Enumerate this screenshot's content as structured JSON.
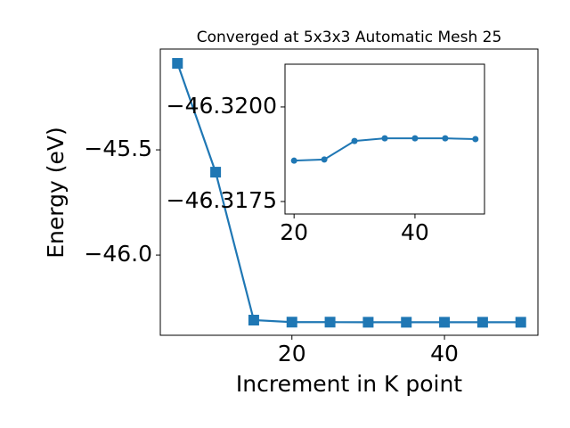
{
  "chart_data": [
    {
      "type": "line",
      "title": "Converged at 5x3x3 Automatic Mesh 25",
      "x_label": "Increment in K point",
      "y_label": "Energy (eV)",
      "x": [
        5,
        10,
        15,
        20,
        25,
        30,
        35,
        40,
        45,
        50
      ],
      "series": [
        {
          "color": "#1f77b4",
          "marker": "square",
          "values": [
            -45.089,
            -45.606,
            -46.309,
            -46.31858,
            -46.31861,
            -46.3191,
            -46.31917,
            -46.31917,
            -46.31917,
            -46.31915
          ]
        }
      ],
      "xlim": [
        2.75,
        52.25
      ],
      "ylim": [
        -46.381,
        -45.021
      ],
      "xticks": [
        20,
        40
      ],
      "yticks": [
        {
          "value": -45.5,
          "label": "−45.5"
        },
        {
          "value": -46.0,
          "label": "−46.0"
        }
      ]
    },
    {
      "type": "line",
      "x": [
        20,
        25,
        30,
        35,
        40,
        45,
        50
      ],
      "series": [
        {
          "color": "#1f77b4",
          "marker": "circle",
          "values": [
            -46.31858,
            -46.31861,
            -46.3191,
            -46.31917,
            -46.31917,
            -46.31917,
            -46.31915
          ]
        }
      ],
      "xlim": [
        18.5,
        51.5
      ],
      "ylim": [
        -46.31717,
        -46.32113
      ],
      "xticks": [
        20,
        40
      ],
      "yticks": [
        {
          "value": -46.32,
          "label": "−46.3200"
        },
        {
          "value": -46.3175,
          "label": "−46.3175"
        }
      ]
    }
  ]
}
